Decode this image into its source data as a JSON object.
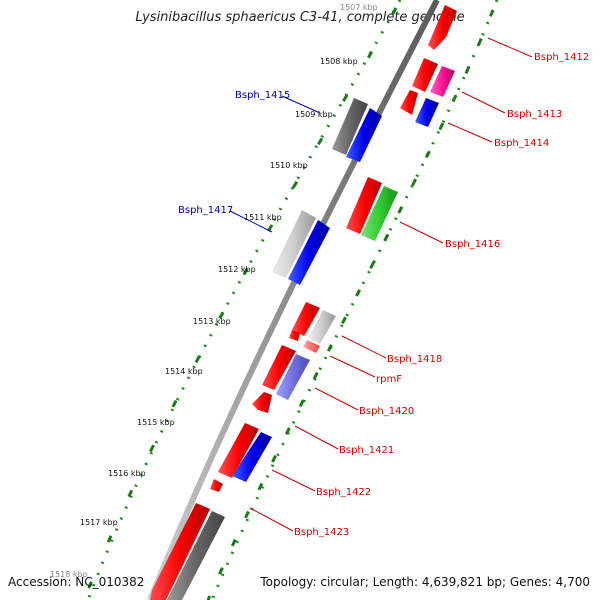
{
  "title": "Lysinibacillus sphaericus C3-41, complete genome",
  "accession": "Accession: NC_010382",
  "summary": "Topology: circular; Length: 4,639,821 bp; Genes: 4,700",
  "colors": {
    "forward_tick": "#228b22",
    "reverse_tick": "#006400",
    "kbp_tick": "#2e7d32",
    "backbone": "#777777",
    "label_fwd": "#cc0000",
    "label_rev": "#0000aa"
  },
  "kbp_labels": [
    {
      "text": "1507 kbp",
      "pos": 1507
    },
    {
      "text": "1508 kbp",
      "pos": 1508
    },
    {
      "text": "1509 kbp",
      "pos": 1509
    },
    {
      "text": "1510 kbp",
      "pos": 1510
    },
    {
      "text": "1511 kbp",
      "pos": 1511
    },
    {
      "text": "1512 kbp",
      "pos": 1512
    },
    {
      "text": "1513 kbp",
      "pos": 1513
    },
    {
      "text": "1514 kbp",
      "pos": 1514
    },
    {
      "text": "1515 kbp",
      "pos": 1515
    },
    {
      "text": "1516 kbp",
      "pos": 1516
    },
    {
      "text": "1517 kbp",
      "pos": 1517
    },
    {
      "text": "1518 kbp",
      "pos": 1518
    }
  ],
  "gene_labels": [
    {
      "text": "Bsph_1412",
      "strand": "fwd"
    },
    {
      "text": "Bsph_1413",
      "strand": "fwd"
    },
    {
      "text": "Bsph_1414",
      "strand": "fwd"
    },
    {
      "text": "Bsph_1415",
      "strand": "rev"
    },
    {
      "text": "Bsph_1416",
      "strand": "fwd"
    },
    {
      "text": "Bsph_1417",
      "strand": "rev"
    },
    {
      "text": "Bsph_1418",
      "strand": "fwd"
    },
    {
      "text": "rpmF",
      "strand": "fwd"
    },
    {
      "text": "Bsph_1420",
      "strand": "fwd"
    },
    {
      "text": "Bsph_1421",
      "strand": "fwd"
    },
    {
      "text": "Bsph_1422",
      "strand": "fwd"
    },
    {
      "text": "Bsph_1423",
      "strand": "fwd"
    }
  ]
}
